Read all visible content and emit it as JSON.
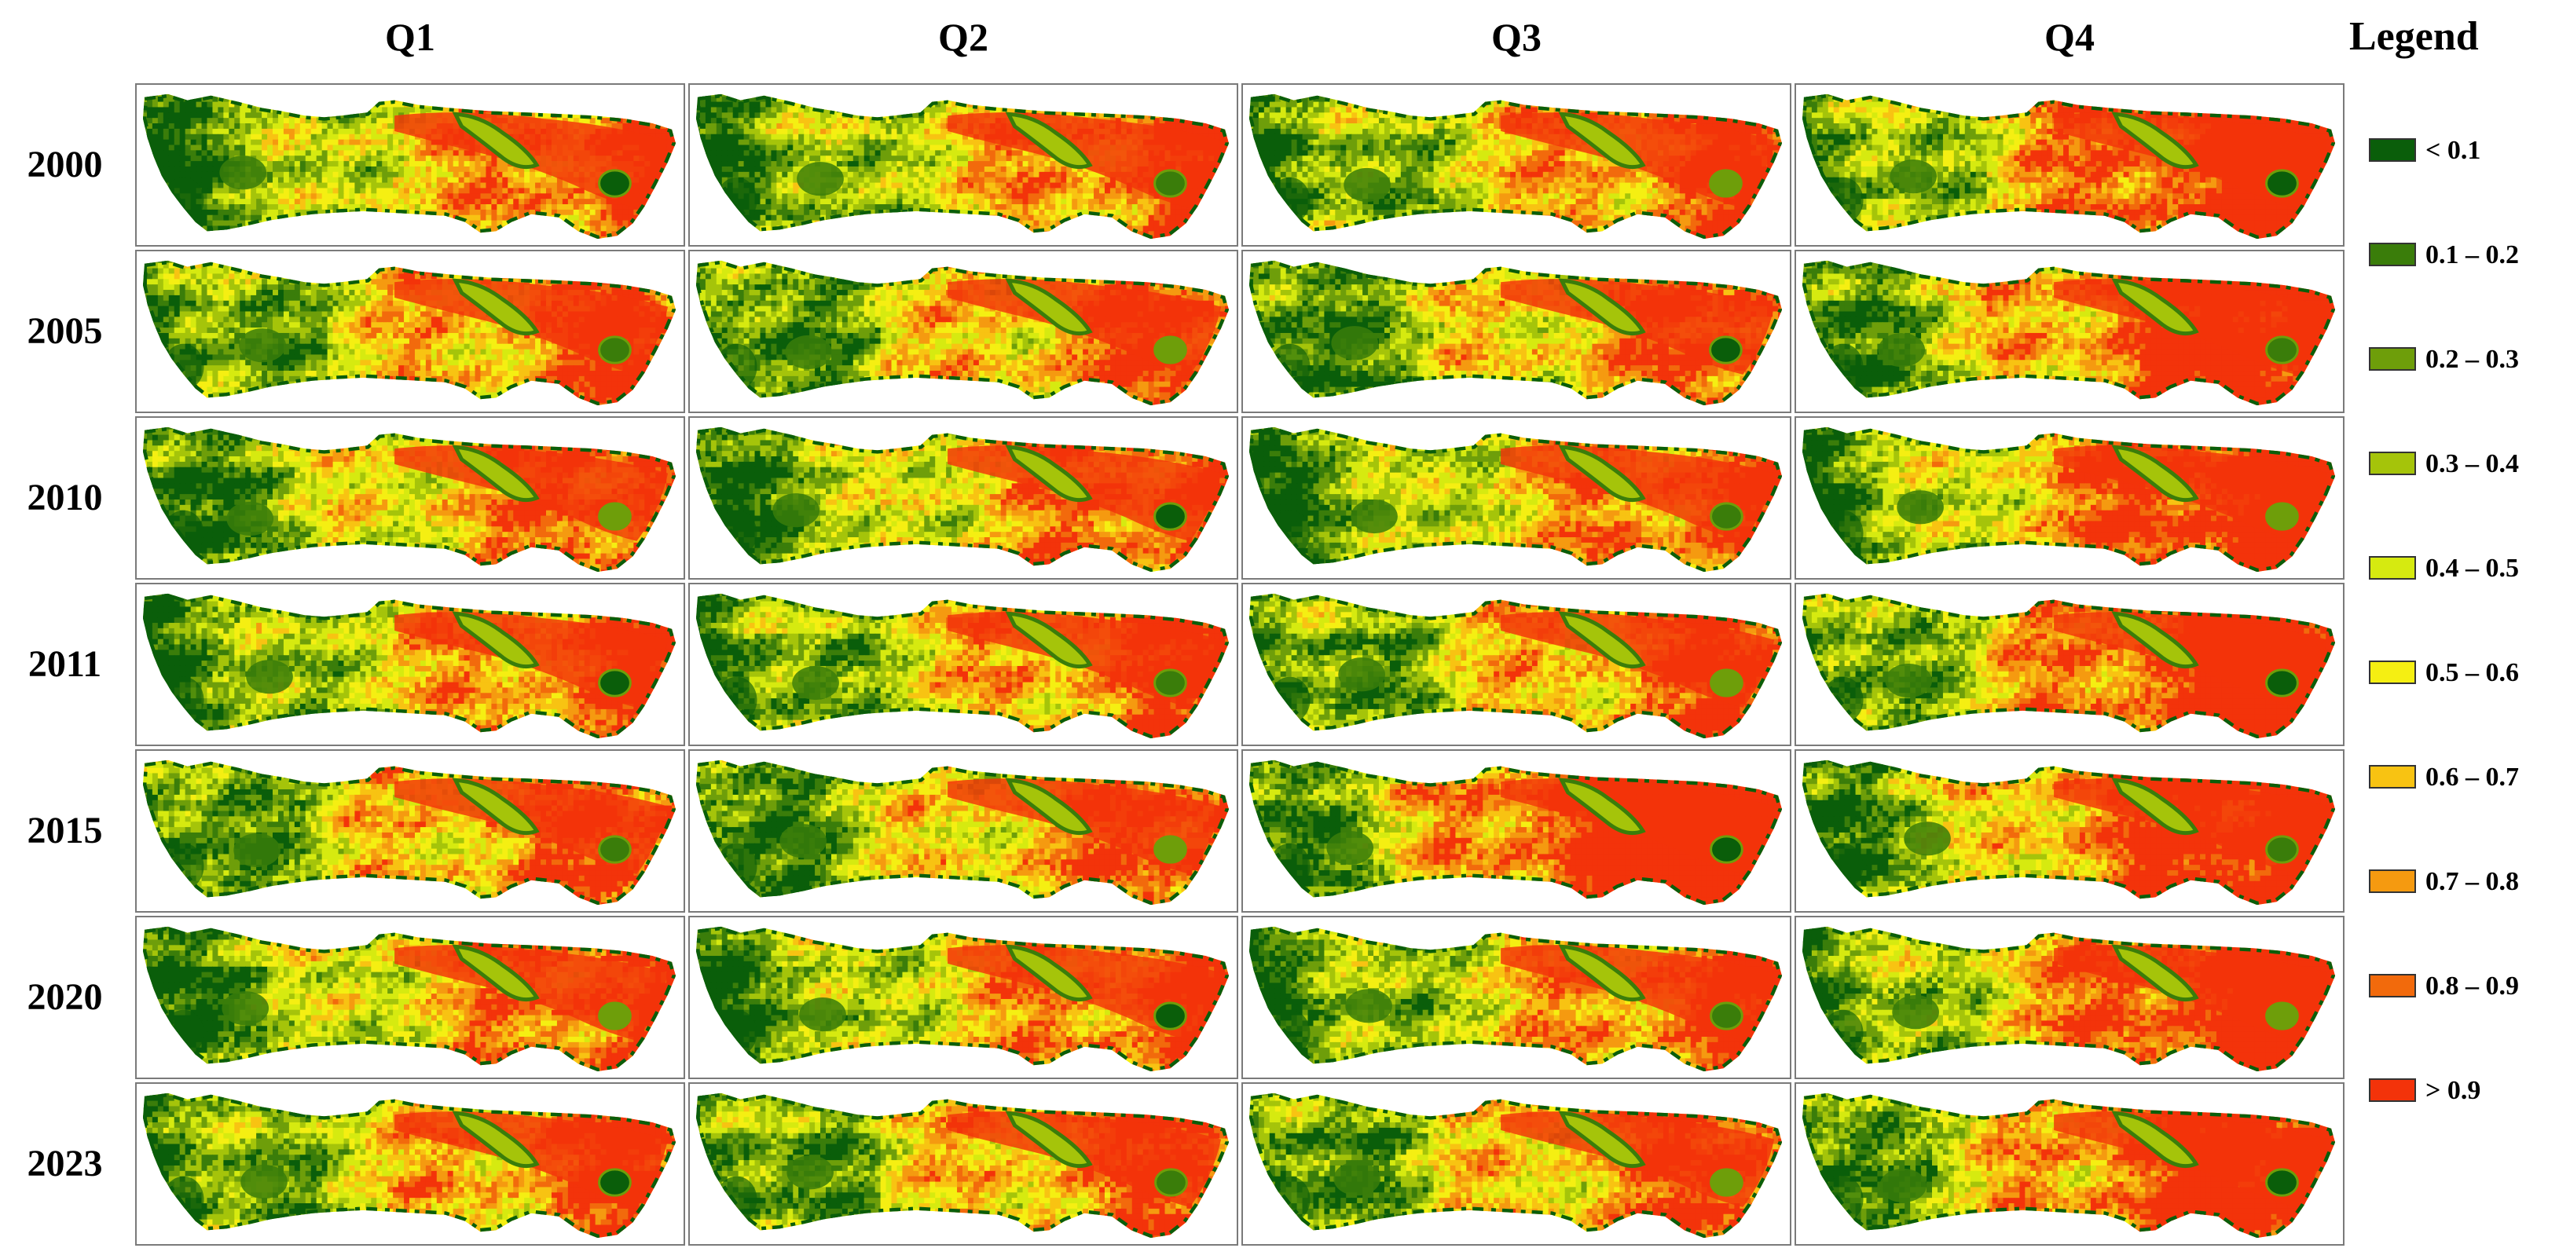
{
  "columns": [
    "Q1",
    "Q2",
    "Q3",
    "Q4"
  ],
  "rows": [
    "2000",
    "2005",
    "2010",
    "2011",
    "2015",
    "2020",
    "2023"
  ],
  "legend": {
    "title": "Legend",
    "items": [
      {
        "label": "< 0.1",
        "color": "#0a5e0a"
      },
      {
        "label": "0.1 – 0.2",
        "color": "#3a7d0a"
      },
      {
        "label": "0.2 – 0.3",
        "color": "#6e9e0a"
      },
      {
        "label": "0.3 – 0.4",
        "color": "#a5c40a"
      },
      {
        "label": "0.4 – 0.5",
        "color": "#d6ea10"
      },
      {
        "label": "0.5 – 0.6",
        "color": "#f5ef12"
      },
      {
        "label": "0.6 – 0.7",
        "color": "#f8c312"
      },
      {
        "label": "0.7 – 0.8",
        "color": "#f59a10"
      },
      {
        "label": "0.8 – 0.9",
        "color": "#f26a0c"
      },
      {
        "label": "> 0.9",
        "color": "#f3330a"
      }
    ]
  }
}
